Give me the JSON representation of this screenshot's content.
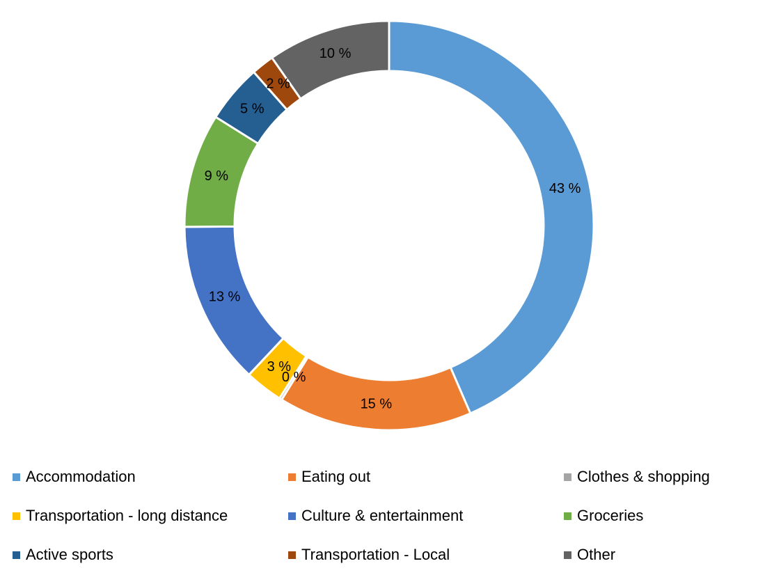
{
  "chart_data": {
    "type": "pie",
    "variant": "donut",
    "title": "",
    "categories": [
      "Accommodation",
      "Eating out",
      "Clothes & shopping",
      "Transportation - long distance",
      "Culture & entertainment",
      "Groceries",
      "Active sports",
      "Transportation - Local",
      "Other"
    ],
    "values": [
      43.5,
      15.3,
      0.2,
      3.0,
      12.9,
      9.0,
      4.6,
      1.8,
      9.7
    ],
    "data_labels": [
      "43 %",
      "15 %",
      "0 %",
      "3 %",
      "13 %",
      "9 %",
      "5 %",
      "2 %",
      "10 %"
    ],
    "colors": [
      "#5b9bd5",
      "#ed7d31",
      "#a5a5a5",
      "#ffc000",
      "#4472c4",
      "#70ad47",
      "#255e91",
      "#9e480e",
      "#636363"
    ],
    "legend_position": "bottom",
    "start_angle": "12 o'clock",
    "direction": "clockwise"
  }
}
